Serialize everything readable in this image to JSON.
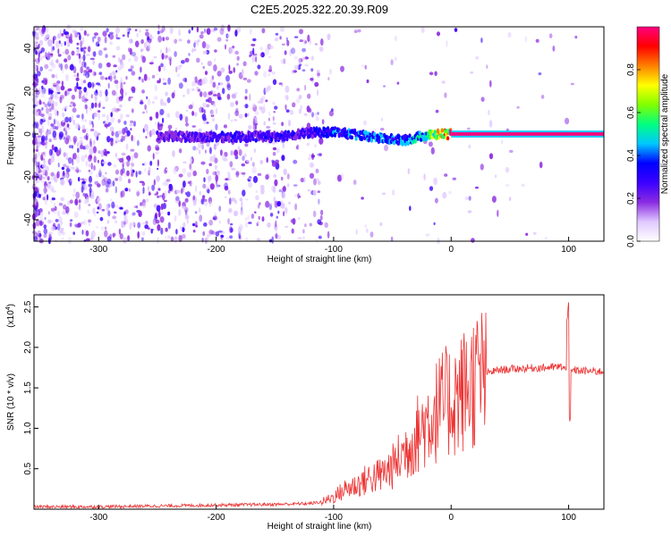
{
  "title": "C2E5.2025.322.20.39.R09",
  "chart_data": [
    {
      "type": "heatmap",
      "xlabel": "Height of straight line (km)",
      "ylabel": "Frequency (Hz)",
      "xlim": [
        -355,
        130
      ],
      "ylim": [
        -50,
        50
      ],
      "x_ticks": [
        -300,
        -200,
        -100,
        0,
        100
      ],
      "y_ticks": [
        -40,
        -20,
        0,
        20,
        40
      ],
      "colorbar": {
        "label": "Normalized spectral amplitude",
        "range": [
          0,
          1
        ],
        "ticks": [
          "0.0",
          "0.2",
          "0.4",
          "0.6",
          "0.8"
        ],
        "tick_values": [
          0.0,
          0.2,
          0.4,
          0.6,
          0.8
        ],
        "colors": [
          "#ffffff",
          "#e0c8ff",
          "#8a2be2",
          "#3b00ff",
          "#0000ff",
          "#00c8ff",
          "#00ff80",
          "#80ff00",
          "#ffff00",
          "#ff8000",
          "#ff0000",
          "#ff0080"
        ]
      },
      "ridge": [
        {
          "x": -250,
          "y": -1.0,
          "amp": 0.22
        },
        {
          "x": -200,
          "y": -1.5,
          "amp": 0.3
        },
        {
          "x": -150,
          "y": -1.0,
          "amp": 0.3
        },
        {
          "x": -120,
          "y": 0.5,
          "amp": 0.3
        },
        {
          "x": -100,
          "y": 1.0,
          "amp": 0.4
        },
        {
          "x": -80,
          "y": -0.5,
          "amp": 0.42
        },
        {
          "x": -60,
          "y": -2.0,
          "amp": 0.45
        },
        {
          "x": -40,
          "y": -3.0,
          "amp": 0.45
        },
        {
          "x": -25,
          "y": -1.0,
          "amp": 0.55
        },
        {
          "x": -10,
          "y": 0.0,
          "amp": 0.8
        },
        {
          "x": 0,
          "y": 0.0,
          "amp": 0.95
        },
        {
          "x": 50,
          "y": 0.0,
          "amp": 0.98
        },
        {
          "x": 95,
          "y": 0.0,
          "amp": 0.98
        },
        {
          "x": 130,
          "y": 0.0,
          "amp": 0.98
        }
      ]
    },
    {
      "type": "line",
      "xlabel": "Height of straight line (km)",
      "ylabel": "SNR (10 * v/v)",
      "y_multiplier_label": "(x10",
      "y_multiplier_exp": "4",
      "xlim": [
        -355,
        130
      ],
      "ylim": [
        0,
        2.65
      ],
      "x_ticks": [
        -300,
        -200,
        -100,
        0,
        100
      ],
      "y_ticks": [
        0.5,
        1.0,
        1.5,
        2.0,
        2.5
      ],
      "y_tick_labels": [
        "0.5",
        "1.0",
        "1.5",
        "2.0",
        "2.5"
      ],
      "series": [
        {
          "color": "#ee3333",
          "x": [
            -355,
            -300,
            -250,
            -200,
            -150,
            -120,
            -110,
            -100,
            -90,
            -80,
            -70,
            -60,
            -50,
            -40,
            -30,
            -20,
            -10,
            0,
            10,
            20,
            30,
            40,
            60,
            80,
            95,
            100,
            105,
            110,
            130
          ],
          "y": [
            0.03,
            0.03,
            0.04,
            0.05,
            0.06,
            0.07,
            0.09,
            0.15,
            0.25,
            0.3,
            0.38,
            0.42,
            0.52,
            0.7,
            0.9,
            1.1,
            1.25,
            1.35,
            1.45,
            1.6,
            1.68,
            1.72,
            1.74,
            1.75,
            1.76,
            1.7,
            1.72,
            1.71,
            1.7
          ]
        }
      ]
    }
  ]
}
